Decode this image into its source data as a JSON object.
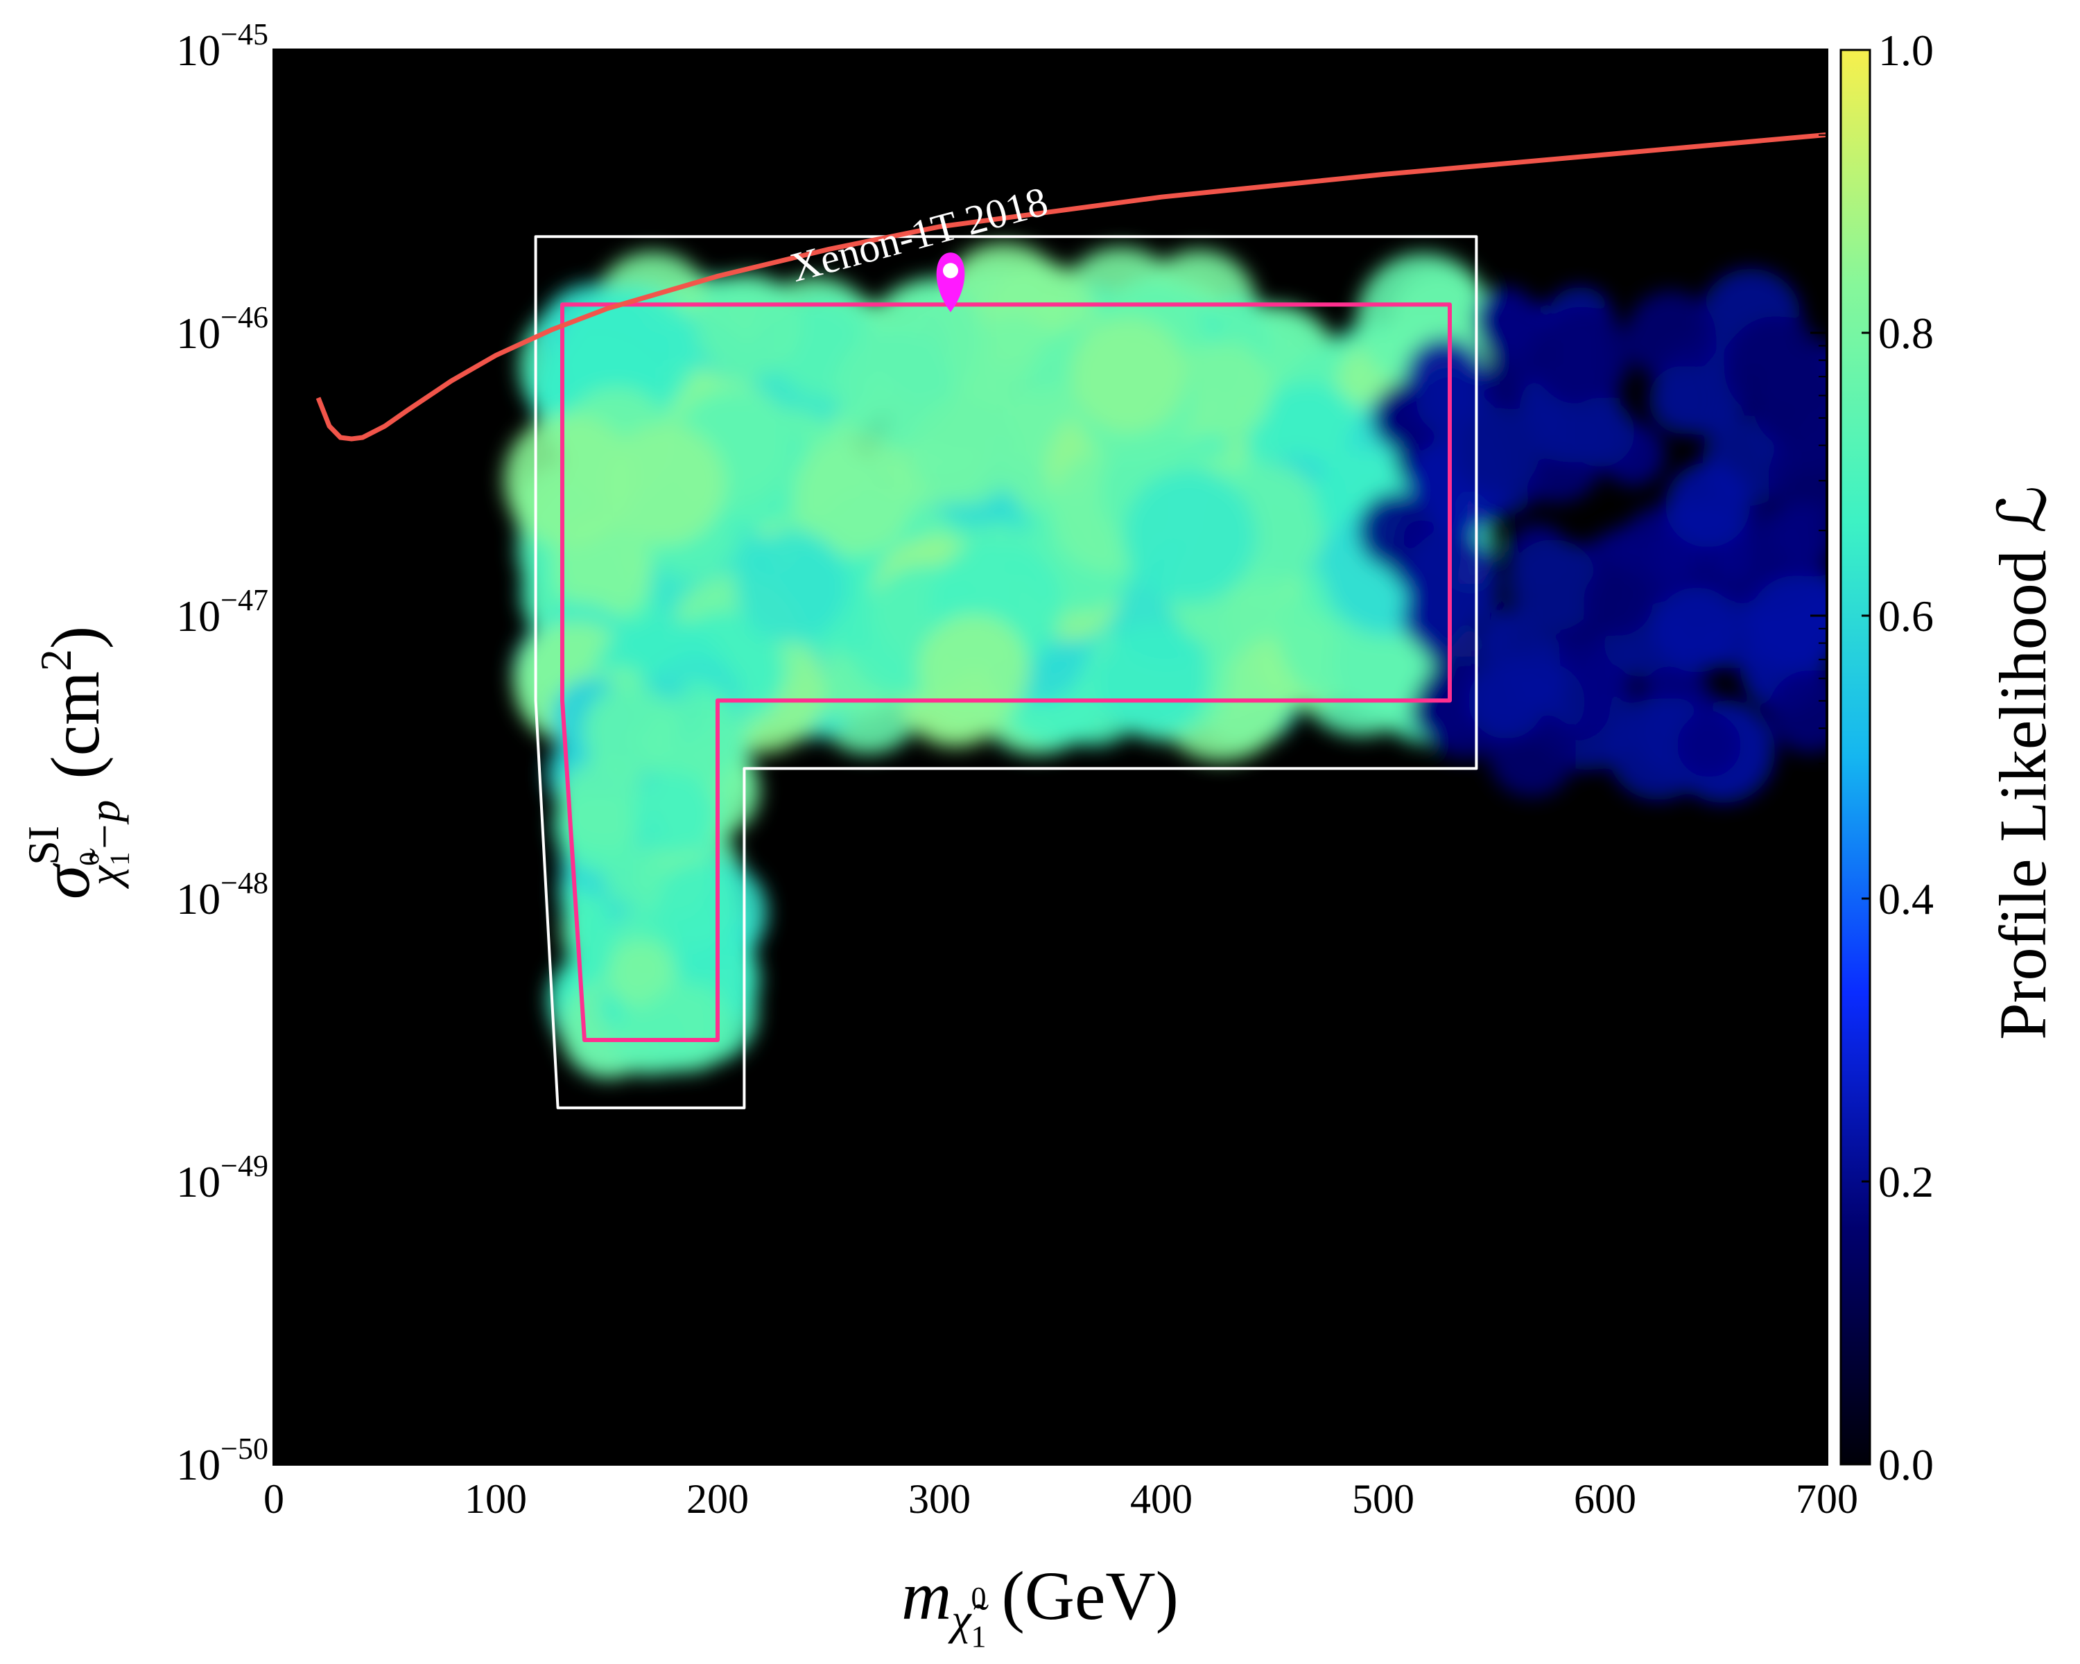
{
  "chart_data": {
    "type": "heatmap",
    "title": "",
    "xlabel": {
      "main": "m",
      "sub": "χ̃",
      "subsup": "0",
      "subsub": "1",
      "unit": "(GeV)"
    },
    "ylabel": {
      "main": "σ",
      "sup": "SI",
      "sub": "χ̃",
      "subsup": "0",
      "subsub": "1",
      "subtail": "−p",
      "unit": "(cm",
      "unit_sup": "2",
      "unit_close": ")"
    },
    "xlim": [
      0,
      700
    ],
    "ylim_log10": [
      -50,
      -45
    ],
    "xticks": [
      0,
      100,
      200,
      300,
      400,
      500,
      600,
      700
    ],
    "xtick_labels": [
      "0",
      "100",
      "200",
      "300",
      "400",
      "500",
      "600",
      "700"
    ],
    "yticks_log10": [
      -50,
      -49,
      -48,
      -47,
      -46,
      -45
    ],
    "ytick_labels": [
      {
        "base": "10",
        "exp": "−50"
      },
      {
        "base": "10",
        "exp": "−49"
      },
      {
        "base": "10",
        "exp": "−48"
      },
      {
        "base": "10",
        "exp": "−47"
      },
      {
        "base": "10",
        "exp": "−46"
      },
      {
        "base": "10",
        "exp": "−45"
      }
    ],
    "colorbar": {
      "label": "Profile Likelihood ℒ",
      "range": [
        0.0,
        1.0
      ],
      "ticks": [
        0.0,
        0.2,
        0.4,
        0.6,
        0.8,
        1.0
      ],
      "tick_labels": [
        "0.0",
        "0.2",
        "0.4",
        "0.6",
        "0.8",
        "1.0"
      ],
      "colormap": "jet-like",
      "stops": [
        "#000008",
        "#00006e",
        "#0a2cff",
        "#15b6f0",
        "#3df2c4",
        "#86f79a",
        "#f7f04c"
      ]
    },
    "series": [
      {
        "name": "Xenon-1T 2018",
        "type": "line",
        "color": "#f2554a",
        "x": [
          20,
          25,
          30,
          35,
          40,
          50,
          60,
          80,
          100,
          125,
          150,
          200,
          250,
          300,
          400,
          500,
          600,
          700
        ],
        "log10_y": [
          -46.23,
          -46.33,
          -46.37,
          -46.375,
          -46.37,
          -46.33,
          -46.275,
          -46.17,
          -46.08,
          -45.99,
          -45.915,
          -45.8,
          -45.705,
          -45.625,
          -45.52,
          -45.44,
          -45.37,
          -45.3
        ]
      },
      {
        "name": "best-fit point",
        "type": "marker",
        "color": "#ff1aff",
        "x": 305,
        "log10_y": -45.78
      }
    ],
    "likelihood_regions": [
      {
        "name": "high-likelihood band",
        "level": 0.75,
        "x_range": [
          130,
          530
        ],
        "log10_y_range": [
          -47.3,
          -45.9
        ]
      },
      {
        "name": "low-mass tail",
        "level": 0.7,
        "x_range": [
          140,
          200
        ],
        "log10_y_range": [
          -48.5,
          -47.3
        ]
      },
      {
        "name": "heavy-mass scattered points",
        "level": 0.2,
        "x_range": [
          500,
          700
        ],
        "log10_y_range": [
          -47.5,
          -45.9
        ]
      }
    ],
    "contours": [
      {
        "name": "1σ",
        "color": "#ff2f8f"
      },
      {
        "name": "2σ",
        "color": "#ffffff"
      }
    ],
    "annotations": [
      {
        "text": "Xenon-1T 2018",
        "color": "#ffffff",
        "x": 235,
        "log10_y": -45.82,
        "rotation_deg": -15
      }
    ],
    "grid": false,
    "background": "#000000"
  }
}
